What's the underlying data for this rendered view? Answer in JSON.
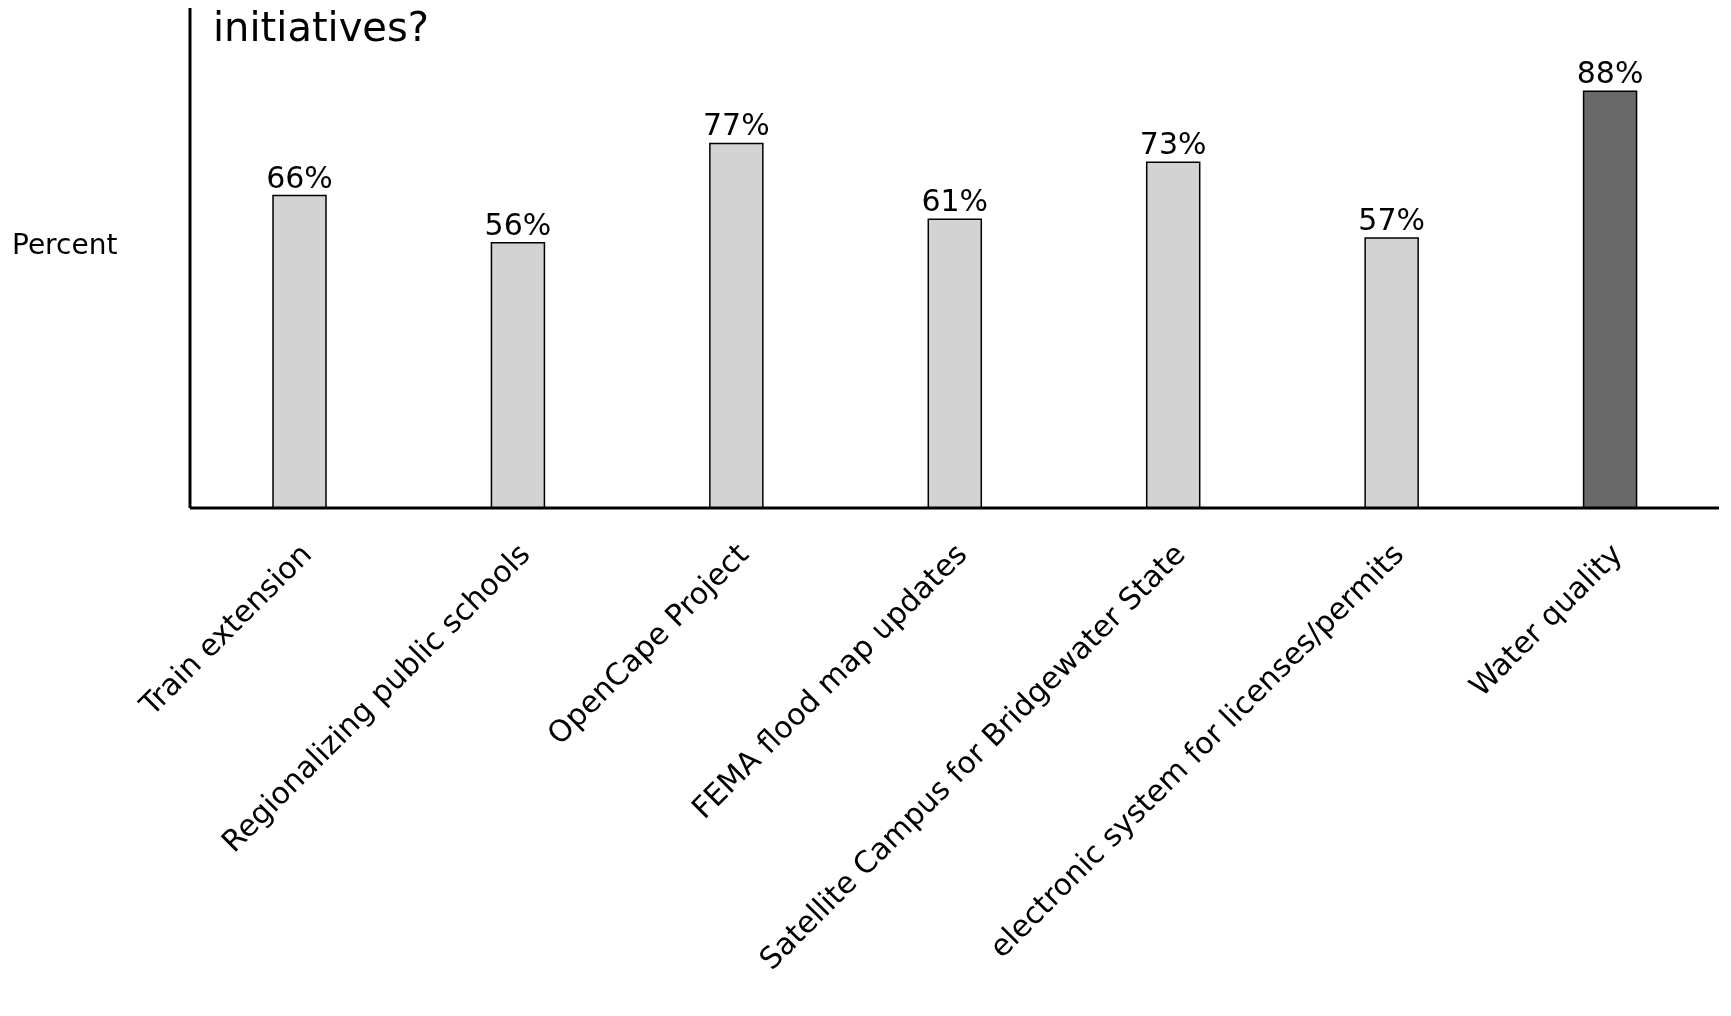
{
  "chart_data": {
    "type": "bar",
    "title": "initiatives?",
    "ylabel": "Percent",
    "categories": [
      "Train extension",
      "Regionalizing public schools",
      "OpenCape Project",
      "FEMA flood map updates",
      "Satellite Campus for Bridgewater State",
      "electronic system for licenses/permits",
      "Water quality"
    ],
    "values": [
      66,
      56,
      77,
      61,
      73,
      57,
      88
    ],
    "value_labels": [
      "66%",
      "56%",
      "77%",
      "61%",
      "73%",
      "57%",
      "88%"
    ],
    "colors": [
      "#d3d3d3",
      "#d3d3d3",
      "#d3d3d3",
      "#d3d3d3",
      "#d3d3d3",
      "#d3d3d3",
      "#696969"
    ],
    "grid": false,
    "legend": false
  }
}
